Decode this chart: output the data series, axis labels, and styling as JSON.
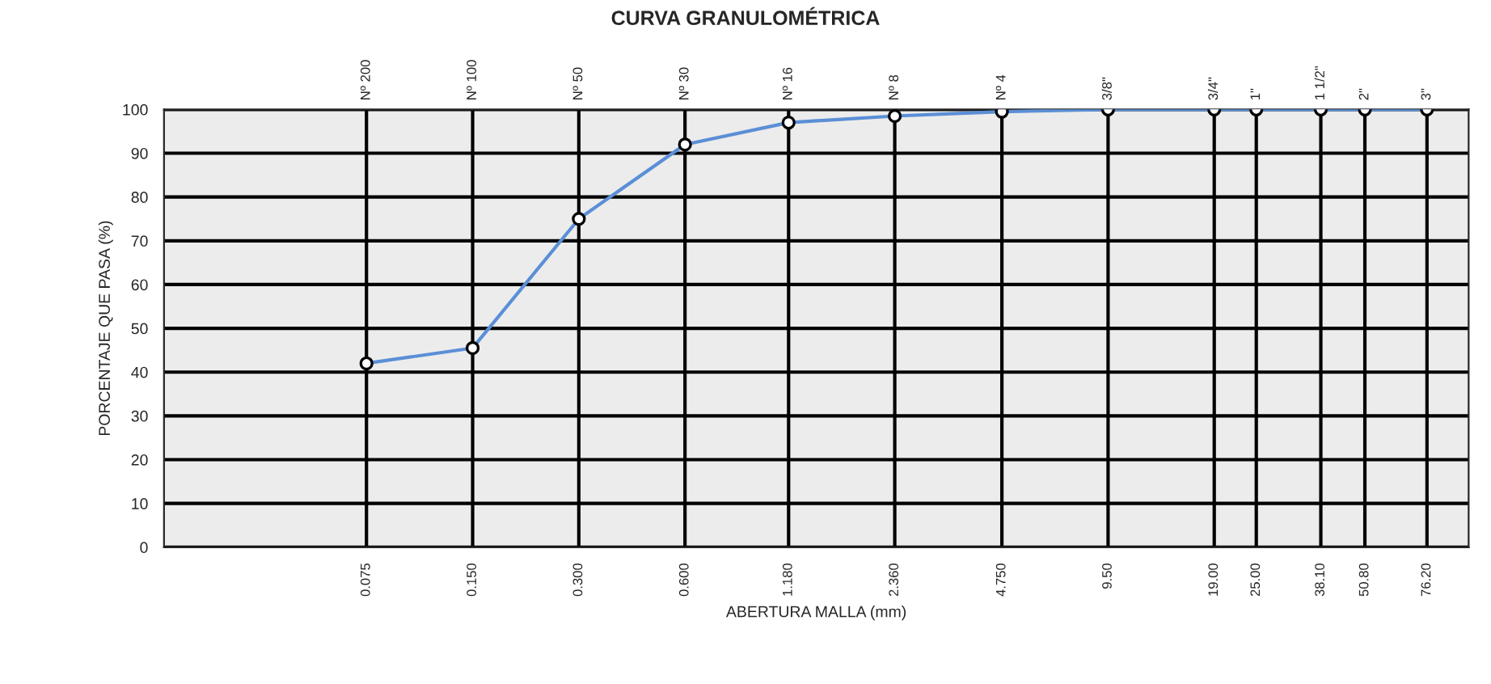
{
  "chart_data": {
    "type": "line",
    "title": "CURVA GRANULOMÉTRICA",
    "xlabel": "ABERTURA MALLA (mm)",
    "ylabel": "PORCENTAJE QUE PASA (%)",
    "log": "x",
    "x": [
      0.075,
      0.15,
      0.3,
      0.6,
      1.18,
      2.36,
      4.75,
      9.5,
      19.0,
      25.0,
      38.1,
      50.8,
      76.2
    ],
    "series": [
      {
        "color": "#5b8fd6",
        "values": [
          42,
          45.5,
          75,
          92,
          97,
          98.5,
          99.5,
          100,
          100,
          100,
          100,
          100,
          100
        ]
      }
    ],
    "xlim": [
      0.02,
      100
    ],
    "xticks": [
      {
        "value": 0.075,
        "label": "0.075"
      },
      {
        "value": 0.15,
        "label": "0.150"
      },
      {
        "value": 0.3,
        "label": "0.300"
      },
      {
        "value": 0.6,
        "label": "0.600"
      },
      {
        "value": 1.18,
        "label": "1.180"
      },
      {
        "value": 2.36,
        "label": "2.360"
      },
      {
        "value": 4.75,
        "label": "4.750"
      },
      {
        "value": 9.5,
        "label": "9.50"
      },
      {
        "value": 19.0,
        "label": "19.00"
      },
      {
        "value": 25.0,
        "label": "25.00"
      },
      {
        "value": 38.1,
        "label": "38.10"
      },
      {
        "value": 50.8,
        "label": "50.80"
      },
      {
        "value": 76.2,
        "label": "76.20"
      }
    ],
    "annotations": [
      "Nº 200",
      "Nº 100",
      "Nº 50",
      "Nº 30",
      "Nº 16",
      "Nº 8",
      "Nº 4",
      "3/8\"",
      "3/4\"",
      "1\"",
      "1 1/2\"",
      "2\"",
      "3\""
    ],
    "ylim": [
      0,
      100
    ],
    "yticks": [
      0,
      10,
      20,
      30,
      40,
      50,
      60,
      70,
      80,
      90,
      100
    ],
    "grid": true,
    "marker": "circle",
    "line_style": "solid"
  }
}
